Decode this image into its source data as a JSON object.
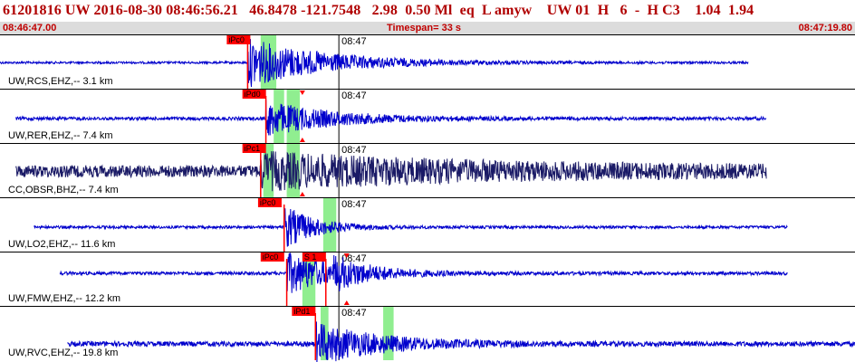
{
  "header": {
    "title": "61201816 UW 2016-08-30 08:46:56.21   46.8478 -121.7548   2.98  0.50 Ml  eq  L amyw    UW 01  H   6  -  H C3    1.04  1.94",
    "start_time": "08:46:47.00",
    "timespan": "Timespan=  33 s",
    "end_time": "08:47:19.80"
  },
  "colors": {
    "title": "#b00000",
    "trace": "#0000cc",
    "trace_dark": "#1a1a66",
    "pick": "#ff0000",
    "window": "#90ee90",
    "divider": "#000000"
  },
  "traces": [
    {
      "label": "UW,RCS,EHZ,-- 3.1 km",
      "minute_tick": "08:47",
      "picks": [
        {
          "text": "iPc0"
        }
      ],
      "color": "trace",
      "noise": 0.04,
      "amp": 0.9,
      "decay": 3.0,
      "y": 0.52,
      "t_start": 0.0,
      "t_end": 28.7,
      "t_onset": 9.5,
      "pick_times": [
        9.5
      ],
      "pick_text_times": [
        8.7
      ],
      "windows": [
        [
          10.0,
          10.6
        ]
      ],
      "triangles": [],
      "coda_t": 0
    },
    {
      "label": "UW,RER,EHZ,-- 7.4 km",
      "minute_tick": "08:47",
      "picks": [
        {
          "text": "iPd0"
        }
      ],
      "color": "trace",
      "noise": 0.06,
      "amp": 0.65,
      "decay": 2.5,
      "y": 0.55,
      "t_start": 0.6,
      "t_end": 29.4,
      "t_onset": 10.2,
      "pick_times": [
        10.2
      ],
      "pick_text_times": [
        9.3
      ],
      "windows": [
        [
          10.5,
          10.9
        ],
        [
          11.0,
          11.5
        ]
      ],
      "triangles": [
        {
          "t": 11.6,
          "dir": "down"
        },
        {
          "t": 11.6,
          "dir": "up"
        }
      ],
      "coda_t": 0
    },
    {
      "label": "CC,OBSR,BHZ,-- 7.4 km",
      "minute_tick": "08:47",
      "picks": [
        {
          "text": "iPc1"
        }
      ],
      "color": "trace_dark",
      "noise": 0.22,
      "amp": 0.55,
      "decay": 9.0,
      "y": 0.52,
      "t_start": 0.6,
      "t_end": 29.4,
      "t_onset": 10.0,
      "pick_times": [
        10.0
      ],
      "pick_text_times": [
        9.3
      ],
      "windows": [
        [
          10.1,
          10.5
        ],
        [
          11.0,
          11.5
        ]
      ],
      "triangles": [
        {
          "t": 11.6,
          "dir": "up"
        }
      ],
      "coda_t": 0
    },
    {
      "label": "UW,LO2,EHZ,-- 11.6 km",
      "minute_tick": "08:47",
      "picks": [
        {
          "text": "iPc0"
        }
      ],
      "color": "trace",
      "noise": 0.05,
      "amp": 0.8,
      "decay": 1.2,
      "y": 0.55,
      "t_start": 1.3,
      "t_end": 30.2,
      "t_onset": 10.9,
      "pick_times": [
        10.9
      ],
      "pick_text_times": [
        9.9
      ],
      "windows": [
        [
          12.4,
          12.9
        ]
      ],
      "triangles": [],
      "coda_t": 0
    },
    {
      "label": "UW,FMW,EHZ,-- 12.2 km",
      "minute_tick": "08:47",
      "picks": [
        {
          "text": "iPc0"
        },
        {
          "text": "S 1"
        }
      ],
      "color": "trace",
      "noise": 0.06,
      "amp": 0.75,
      "decay": 2.0,
      "y": 0.4,
      "t_start": 2.3,
      "t_end": 30.2,
      "t_onset": 11.0,
      "pick_times": [
        11.0,
        12.5
      ],
      "pick_text_times": [
        10.0,
        11.6
      ],
      "windows": [
        [
          11.6,
          12.1
        ]
      ],
      "triangles": [
        {
          "t": 13.3,
          "dir": "down"
        },
        {
          "t": 13.3,
          "dir": "up"
        }
      ],
      "coda_t": 12.8
    },
    {
      "label": "UW,RVC,EHZ,-- 19.8 km",
      "minute_tick": "08:47",
      "picks": [
        {
          "text": "iPd1"
        }
      ],
      "color": "trace",
      "noise": 0.09,
      "amp": 0.75,
      "decay": 2.5,
      "y": 0.7,
      "t_start": 2.6,
      "t_end": 32.8,
      "t_onset": 12.1,
      "pick_times": [
        12.1
      ],
      "pick_text_times": [
        11.2
      ],
      "windows": [
        [
          12.3,
          12.6
        ],
        [
          14.7,
          15.1
        ]
      ],
      "triangles": [],
      "coda_t": 0
    }
  ]
}
